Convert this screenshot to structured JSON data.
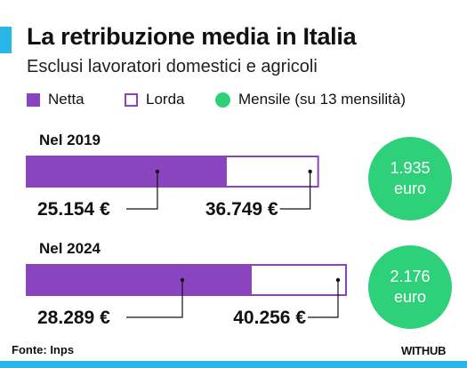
{
  "header": {
    "title": "La retribuzione media in Italia",
    "subtitle": "Esclusi lavoratori domestici e agricoli"
  },
  "legend": {
    "netta": "Netta",
    "lorda": "Lorda",
    "mensile": "Mensile (su 13 mensilità)"
  },
  "colors": {
    "netta": "#8a44c0",
    "lorda_border": "#8a44c0",
    "mensile": "#2fd07a",
    "accent": "#29b6e8"
  },
  "chart_data": {
    "type": "bar",
    "categories": [
      "Nel 2019",
      "Nel 2024"
    ],
    "series": [
      {
        "name": "Netta",
        "values": [
          25154,
          28289
        ],
        "labels": [
          "25.154 €",
          "28.289 €"
        ]
      },
      {
        "name": "Lorda",
        "values": [
          36749,
          40256
        ],
        "labels": [
          "36.749 €",
          "40.256 €"
        ]
      }
    ],
    "mensile": [
      {
        "value": "1.935",
        "unit": "euro"
      },
      {
        "value": "2.176",
        "unit": "euro"
      }
    ],
    "orientation": "horizontal",
    "xlim": [
      0,
      40256
    ],
    "grid": false
  },
  "footer": {
    "source": "Fonte: Inps",
    "brand": "WITHUB"
  }
}
